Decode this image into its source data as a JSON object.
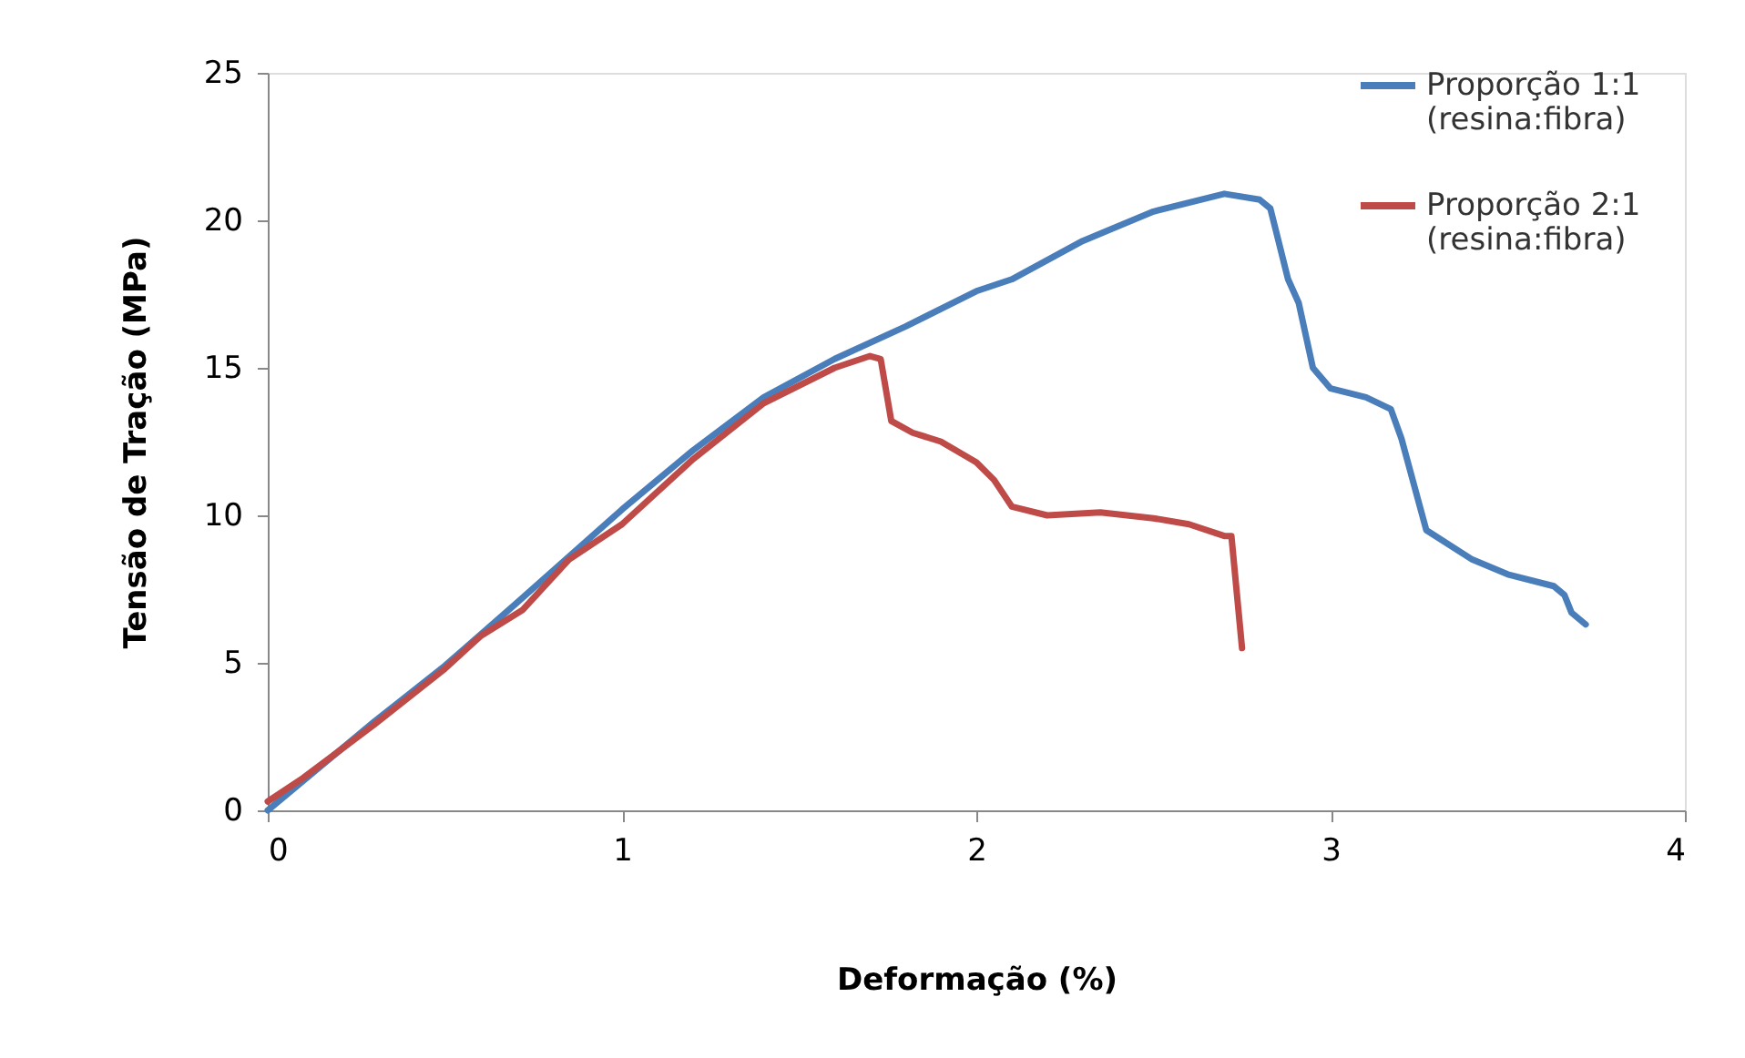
{
  "chart_data": {
    "type": "line",
    "xlabel": "Deformação (%)",
    "ylabel": "Tensão de Tração (MPa)",
    "xlim": [
      0,
      4
    ],
    "xticks": [
      0,
      1,
      2,
      3,
      4
    ],
    "ylim": [
      0,
      25
    ],
    "yticks": [
      0,
      5,
      10,
      15,
      20,
      25
    ],
    "grid": false,
    "legend": "top right",
    "marker": "none",
    "line_style": "solid",
    "series": [
      {
        "name": "Proporção 1:1 (resina:fibra)",
        "color": "#4a7ebb",
        "x": [
          0,
          0.3,
          0.5,
          0.7,
          1.0,
          1.2,
          1.4,
          1.6,
          1.8,
          2.0,
          2.1,
          2.3,
          2.5,
          2.7,
          2.8,
          2.83,
          2.88,
          2.91,
          2.95,
          3.0,
          3.1,
          3.17,
          3.2,
          3.27,
          3.4,
          3.5,
          3.63,
          3.66,
          3.68,
          3.72
        ],
        "values": [
          0,
          3.0,
          4.9,
          7.0,
          10.2,
          12.2,
          14.0,
          15.3,
          16.4,
          17.6,
          18.0,
          19.3,
          20.3,
          20.9,
          20.7,
          20.4,
          18.0,
          17.2,
          15.0,
          14.3,
          14.0,
          13.6,
          12.6,
          9.5,
          8.5,
          8.0,
          7.6,
          7.3,
          6.7,
          6.3
        ]
      },
      {
        "name": "Proporção 2:1 (resina:fibra)",
        "color": "#be4b48",
        "x": [
          0,
          0.1,
          0.3,
          0.5,
          0.6,
          0.72,
          0.85,
          1.0,
          1.2,
          1.4,
          1.6,
          1.7,
          1.73,
          1.76,
          1.82,
          1.9,
          2.0,
          2.05,
          2.1,
          2.2,
          2.35,
          2.5,
          2.6,
          2.7,
          2.72,
          2.75
        ],
        "values": [
          0.3,
          1.1,
          2.9,
          4.8,
          5.9,
          6.8,
          8.5,
          9.7,
          11.9,
          13.8,
          15.0,
          15.4,
          15.3,
          13.2,
          12.8,
          12.5,
          11.8,
          11.2,
          10.3,
          10.0,
          10.1,
          9.9,
          9.7,
          9.3,
          9.3,
          5.5
        ]
      }
    ]
  }
}
